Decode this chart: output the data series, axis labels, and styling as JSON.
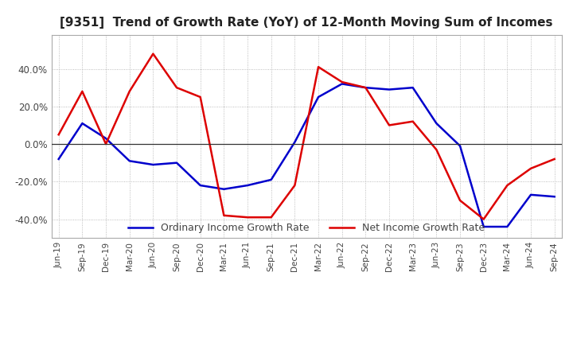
{
  "title": "[9351]  Trend of Growth Rate (YoY) of 12-Month Moving Sum of Incomes",
  "title_fontsize": 11,
  "ylim": [
    -50,
    58
  ],
  "yticks": [
    -40,
    -20,
    0,
    20,
    40
  ],
  "background_color": "#ffffff",
  "grid_color": "#aaaaaa",
  "ordinary_color": "#0000cc",
  "net_color": "#dd0000",
  "legend_ordinary": "Ordinary Income Growth Rate",
  "legend_net": "Net Income Growth Rate",
  "x_labels": [
    "Jun-19",
    "Sep-19",
    "Dec-19",
    "Mar-20",
    "Jun-20",
    "Sep-20",
    "Dec-20",
    "Mar-21",
    "Jun-21",
    "Sep-21",
    "Dec-21",
    "Mar-22",
    "Jun-22",
    "Sep-22",
    "Dec-22",
    "Mar-23",
    "Jun-23",
    "Sep-23",
    "Dec-23",
    "Mar-24",
    "Jun-24",
    "Sep-24"
  ],
  "ordinary_income": [
    -8.0,
    11.0,
    3.0,
    -9.0,
    -11.0,
    -10.0,
    -22.0,
    -24.0,
    -22.0,
    -19.0,
    1.0,
    25.0,
    32.0,
    30.0,
    29.0,
    30.0,
    11.0,
    -1.0,
    -44.0,
    -44.0,
    -27.0,
    -28.0
  ],
  "net_income": [
    5.0,
    28.0,
    0.0,
    28.0,
    48.0,
    30.0,
    25.0,
    -38.0,
    -39.0,
    -39.0,
    -22.0,
    41.0,
    33.0,
    30.0,
    10.0,
    12.0,
    -3.0,
    -30.0,
    -40.0,
    -22.0,
    -13.0,
    -8.0
  ]
}
